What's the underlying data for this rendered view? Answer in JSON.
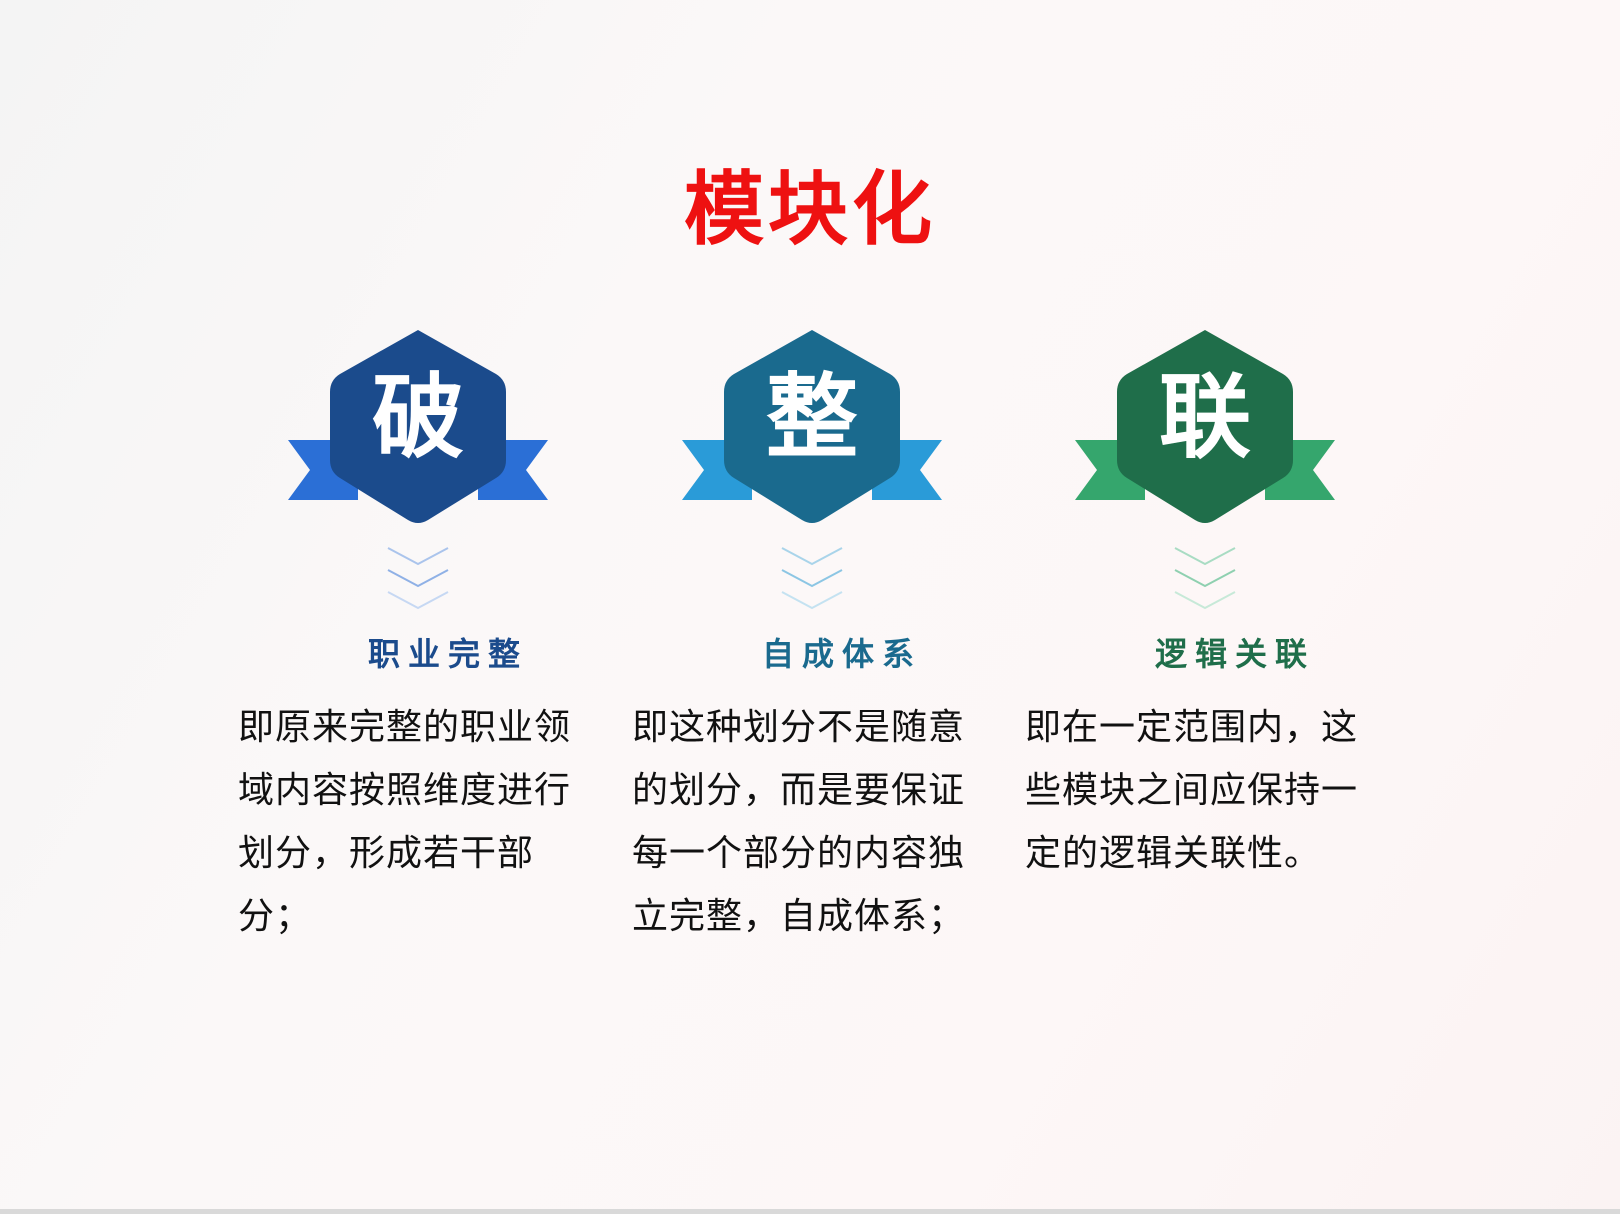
{
  "title": "模块化",
  "colors": {
    "title": "#ee1111",
    "item1": "#1b4b8c",
    "item2": "#1a6a8e",
    "item3": "#1f6e4a"
  },
  "items": [
    {
      "glyph": "破",
      "heading": "职业完整",
      "body": "即原来完整的职业领域内容按照维度进行划分，形成若干部分；",
      "color": "#1b4b8c",
      "ribbon": "#2b6fd6",
      "icon": "hexagon-ribbon-badge-icon"
    },
    {
      "glyph": "整",
      "heading": "自成体系",
      "body": "即这种划分不是随意的划分，而是要保证每一个部分的内容独立完整，自成体系；",
      "color": "#1a6a8e",
      "ribbon": "#2a9bd8",
      "icon": "hexagon-ribbon-badge-icon"
    },
    {
      "glyph": "联",
      "heading": "逻辑关联",
      "body": "即在一定范围内，这些模块之间应保持一定的逻辑关联性。",
      "color": "#1f6e4a",
      "ribbon": "#35a66d",
      "icon": "hexagon-ribbon-badge-icon"
    }
  ]
}
